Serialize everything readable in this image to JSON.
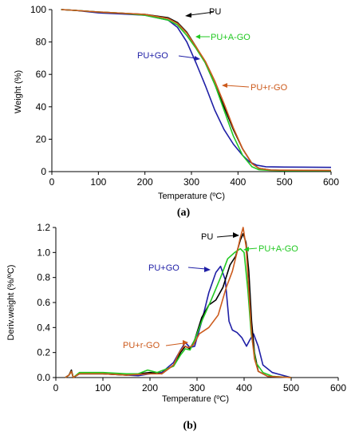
{
  "chart_data": [
    {
      "type": "line",
      "panel_label": "(a)",
      "xlabel": "Temperature (ºC)",
      "ylabel": "Weight (%)",
      "xlim": [
        0,
        600
      ],
      "ylim": [
        0,
        100
      ],
      "xticks": [
        0,
        100,
        200,
        300,
        400,
        500,
        600
      ],
      "yticks": [
        0,
        20,
        40,
        60,
        80,
        100
      ],
      "grid": false,
      "series": [
        {
          "name": "PU+GO",
          "color": "#1f1fa6",
          "points": [
            [
              20,
              100
            ],
            [
              50,
              99.5
            ],
            [
              100,
              98
            ],
            [
              150,
              97.3
            ],
            [
              200,
              96.5
            ],
            [
              250,
              93.5
            ],
            [
              270,
              89
            ],
            [
              290,
              80
            ],
            [
              310,
              67
            ],
            [
              330,
              53
            ],
            [
              350,
              38
            ],
            [
              370,
              26
            ],
            [
              390,
              17
            ],
            [
              410,
              10
            ],
            [
              425,
              6
            ],
            [
              440,
              4
            ],
            [
              460,
              3
            ],
            [
              500,
              2.8
            ],
            [
              600,
              2.6
            ]
          ]
        },
        {
          "name": "PU",
          "color": "#000000",
          "points": [
            [
              20,
              100
            ],
            [
              50,
              99.5
            ],
            [
              100,
              98.5
            ],
            [
              150,
              97.8
            ],
            [
              200,
              97
            ],
            [
              250,
              95
            ],
            [
              270,
              92
            ],
            [
              290,
              86
            ],
            [
              310,
              77
            ],
            [
              330,
              67
            ],
            [
              350,
              54
            ],
            [
              370,
              40
            ],
            [
              390,
              26
            ],
            [
              410,
              14
            ],
            [
              430,
              5
            ],
            [
              445,
              2
            ],
            [
              470,
              1
            ],
            [
              500,
              0.8
            ],
            [
              600,
              0.6
            ]
          ]
        },
        {
          "name": "PU+A-GO",
          "color": "#22c922",
          "points": [
            [
              20,
              100
            ],
            [
              50,
              99.5
            ],
            [
              100,
              98.5
            ],
            [
              150,
              97.8
            ],
            [
              200,
              96.5
            ],
            [
              250,
              93.5
            ],
            [
              270,
              90.5
            ],
            [
              290,
              84
            ],
            [
              310,
              76
            ],
            [
              330,
              67
            ],
            [
              350,
              54
            ],
            [
              370,
              38
            ],
            [
              390,
              22
            ],
            [
              410,
              10
            ],
            [
              430,
              3
            ],
            [
              445,
              1.2
            ],
            [
              470,
              0.8
            ],
            [
              500,
              0.6
            ],
            [
              600,
              0.6
            ]
          ]
        },
        {
          "name": "PU+r-GO",
          "color": "#cc5a1c",
          "points": [
            [
              20,
              100
            ],
            [
              50,
              99.5
            ],
            [
              100,
              98.5
            ],
            [
              150,
              97.8
            ],
            [
              200,
              97
            ],
            [
              250,
              94.5
            ],
            [
              270,
              91.5
            ],
            [
              290,
              85.5
            ],
            [
              310,
              77
            ],
            [
              330,
              68
            ],
            [
              350,
              56
            ],
            [
              370,
              42
            ],
            [
              390,
              27
            ],
            [
              410,
              14
            ],
            [
              430,
              5
            ],
            [
              445,
              2
            ],
            [
              470,
              1
            ],
            [
              500,
              0.9
            ],
            [
              600,
              0.8
            ]
          ]
        }
      ],
      "annotations": [
        {
          "text": "PU",
          "color": "#000000"
        },
        {
          "text": "PU+A-GO",
          "color": "#22c922"
        },
        {
          "text": "PU+GO",
          "color": "#1f1fa6"
        },
        {
          "text": "PU+r-GO",
          "color": "#cc5a1c"
        }
      ]
    },
    {
      "type": "line",
      "panel_label": "(b)",
      "xlabel": "Temperature (ºC)",
      "ylabel": "Deriv.weight (%/ºC)",
      "xlim": [
        0,
        600
      ],
      "ylim": [
        0,
        1.2
      ],
      "xticks": [
        0,
        100,
        200,
        300,
        400,
        500,
        600
      ],
      "yticks": [
        "0.0",
        "0.2",
        "0.4",
        "0.6",
        "0.8",
        "1.0",
        "1.2"
      ],
      "grid": false,
      "series": [
        {
          "name": "PU+GO",
          "color": "#1f1fa6",
          "points": [
            [
              20,
              0
            ],
            [
              28,
              0.02
            ],
            [
              33,
              0.05
            ],
            [
              37,
              0.0
            ],
            [
              50,
              0.03
            ],
            [
              100,
              0.03
            ],
            [
              150,
              0.02
            ],
            [
              175,
              0.015
            ],
            [
              200,
              0.03
            ],
            [
              225,
              0.04
            ],
            [
              250,
              0.12
            ],
            [
              265,
              0.22
            ],
            [
              275,
              0.28
            ],
            [
              285,
              0.24
            ],
            [
              295,
              0.25
            ],
            [
              310,
              0.45
            ],
            [
              325,
              0.68
            ],
            [
              340,
              0.84
            ],
            [
              350,
              0.89
            ],
            [
              360,
              0.78
            ],
            [
              368,
              0.45
            ],
            [
              375,
              0.38
            ],
            [
              385,
              0.36
            ],
            [
              395,
              0.32
            ],
            [
              405,
              0.25
            ],
            [
              412,
              0.3
            ],
            [
              420,
              0.35
            ],
            [
              430,
              0.25
            ],
            [
              440,
              0.1
            ],
            [
              460,
              0.04
            ],
            [
              480,
              0.02
            ],
            [
              500,
              0.0
            ]
          ]
        },
        {
          "name": "PU",
          "color": "#000000",
          "points": [
            [
              20,
              0
            ],
            [
              28,
              0.02
            ],
            [
              33,
              0.06
            ],
            [
              37,
              0.0
            ],
            [
              50,
              0.03
            ],
            [
              100,
              0.03
            ],
            [
              150,
              0.02
            ],
            [
              200,
              0.04
            ],
            [
              225,
              0.03
            ],
            [
              250,
              0.1
            ],
            [
              265,
              0.2
            ],
            [
              275,
              0.25
            ],
            [
              285,
              0.23
            ],
            [
              295,
              0.3
            ],
            [
              310,
              0.48
            ],
            [
              325,
              0.58
            ],
            [
              340,
              0.62
            ],
            [
              355,
              0.72
            ],
            [
              370,
              0.9
            ],
            [
              382,
              0.97
            ],
            [
              392,
              1.1
            ],
            [
              398,
              1.15
            ],
            [
              404,
              1.08
            ],
            [
              410,
              0.85
            ],
            [
              416,
              0.45
            ],
            [
              422,
              0.2
            ],
            [
              430,
              0.05
            ],
            [
              450,
              0.01
            ],
            [
              500,
              0.0
            ]
          ]
        },
        {
          "name": "PU+A-GO",
          "color": "#22c922",
          "points": [
            [
              20,
              0
            ],
            [
              28,
              0.02
            ],
            [
              33,
              0.05
            ],
            [
              37,
              0.0
            ],
            [
              50,
              0.04
            ],
            [
              100,
              0.04
            ],
            [
              150,
              0.03
            ],
            [
              175,
              0.03
            ],
            [
              195,
              0.06
            ],
            [
              215,
              0.04
            ],
            [
              250,
              0.09
            ],
            [
              265,
              0.18
            ],
            [
              275,
              0.23
            ],
            [
              285,
              0.22
            ],
            [
              295,
              0.3
            ],
            [
              310,
              0.45
            ],
            [
              330,
              0.62
            ],
            [
              350,
              0.8
            ],
            [
              365,
              0.95
            ],
            [
              380,
              1.0
            ],
            [
              392,
              1.03
            ],
            [
              400,
              1.0
            ],
            [
              408,
              0.7
            ],
            [
              415,
              0.35
            ],
            [
              425,
              0.12
            ],
            [
              440,
              0.04
            ],
            [
              460,
              0.01
            ],
            [
              500,
              0.0
            ]
          ]
        },
        {
          "name": "PU+r-GO",
          "color": "#cc5a1c",
          "points": [
            [
              20,
              0
            ],
            [
              28,
              0.02
            ],
            [
              33,
              0.05
            ],
            [
              37,
              0.0
            ],
            [
              50,
              0.03
            ],
            [
              100,
              0.03
            ],
            [
              150,
              0.02
            ],
            [
              200,
              0.03
            ],
            [
              225,
              0.03
            ],
            [
              250,
              0.1
            ],
            [
              262,
              0.2
            ],
            [
              272,
              0.25
            ],
            [
              282,
              0.24
            ],
            [
              292,
              0.26
            ],
            [
              305,
              0.35
            ],
            [
              325,
              0.4
            ],
            [
              345,
              0.5
            ],
            [
              362,
              0.72
            ],
            [
              375,
              0.85
            ],
            [
              385,
              1.0
            ],
            [
              392,
              1.12
            ],
            [
              398,
              1.2
            ],
            [
              404,
              1.05
            ],
            [
              410,
              0.7
            ],
            [
              416,
              0.35
            ],
            [
              422,
              0.15
            ],
            [
              430,
              0.05
            ],
            [
              450,
              0.01
            ],
            [
              500,
              0.0
            ]
          ]
        }
      ],
      "annotations": [
        {
          "text": "PU",
          "color": "#000000"
        },
        {
          "text": "PU+A-GO",
          "color": "#22c922"
        },
        {
          "text": "PU+GO",
          "color": "#1f1fa6"
        },
        {
          "text": "PU+r-GO",
          "color": "#cc5a1c"
        }
      ]
    }
  ]
}
